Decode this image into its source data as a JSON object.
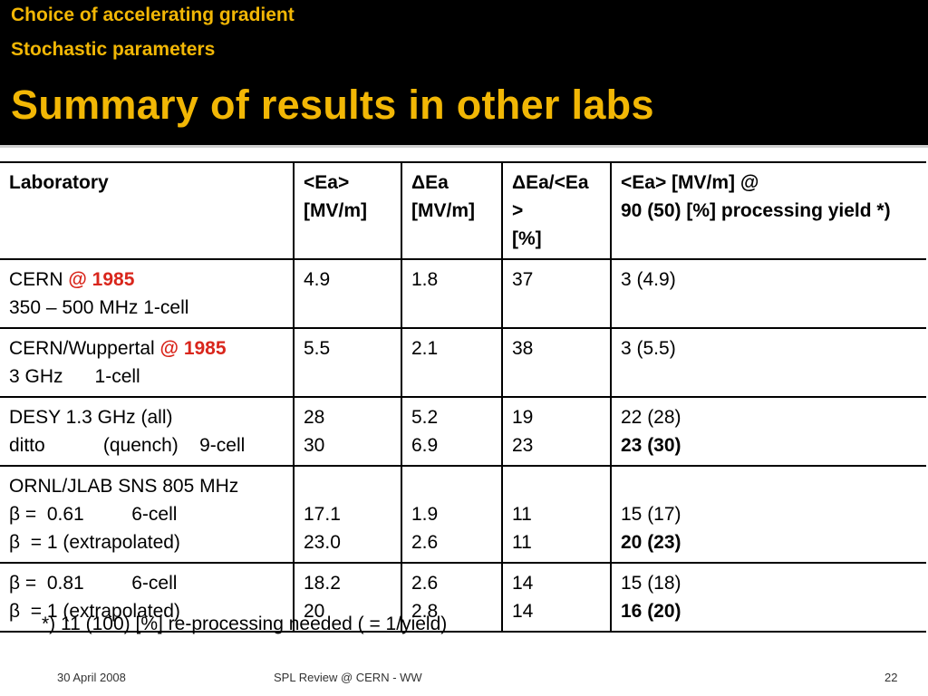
{
  "header": {
    "subtitle_1": "Choice of accelerating gradient",
    "subtitle_2": "Stochastic parameters",
    "title": "Summary of results in other labs"
  },
  "table": {
    "headers": {
      "lab": "Laboratory",
      "ea_line1": "<Ea>",
      "ea_line2": "[MV/m]",
      "dea_line1": "ΔEa",
      "dea_line2": "[MV/m]",
      "ratio_line1": "ΔEa/<Ea >",
      "ratio_line2": "[%]",
      "yield_line1": "<Ea>  [MV/m] @",
      "yield_line2": "90 (50) [%] processing yield *)"
    },
    "rows": [
      {
        "lab_line1": "CERN",
        "lab_line1_red": "@ 1985",
        "lab_line2": "350 – 500 MHz 1-cell",
        "ea": "4.9",
        "dea": "1.8",
        "ratio": "37",
        "yield": "3 (4.9)"
      },
      {
        "lab_line1": "CERN/Wuppertal",
        "lab_line1_red": "@ 1985",
        "lab_line2": "3 GHz      1-cell",
        "ea": "5.5",
        "dea": "2.1",
        "ratio": "38",
        "yield": "3 (5.5)"
      },
      {
        "lab_line1": "DESY 1.3 GHz (all)",
        "lab_line2": "ditto           (quench)    9-cell",
        "ea_1": "28",
        "ea_2": "30",
        "dea_1": "5.2",
        "dea_2": "6.9",
        "ratio_1": "19",
        "ratio_2": "23",
        "yield_1": "22 (28)",
        "yield_2": "23 (30)"
      },
      {
        "lab_line1": "ORNL/JLAB SNS 805 MHz",
        "lab_line2": "β =  0.61         6-cell",
        "lab_line3": "β  = 1 (extrapolated)",
        "ea_1": "17.1",
        "ea_2": "23.0",
        "dea_1": "1.9",
        "dea_2": "2.6",
        "ratio_1": "11",
        "ratio_2": "11",
        "yield_1": "15 (17)",
        "yield_2": "20 (23)"
      },
      {
        "lab_line1": "β =  0.81         6-cell",
        "lab_line2": "β  = 1 (extrapolated)",
        "ea_1": "18.2",
        "ea_2": "20",
        "dea_1": "2.6",
        "dea_2": "2.8",
        "ratio_1": "14",
        "ratio_2": "14",
        "yield_1": "15 (18)",
        "yield_2": "16 (20)"
      }
    ]
  },
  "footnote": "*) 11 (100) [%] re-processing needed ( = 1/yield)",
  "footer": {
    "date": "30 April 2008",
    "center": "SPL Review  @ CERN - WW",
    "page": "22"
  }
}
